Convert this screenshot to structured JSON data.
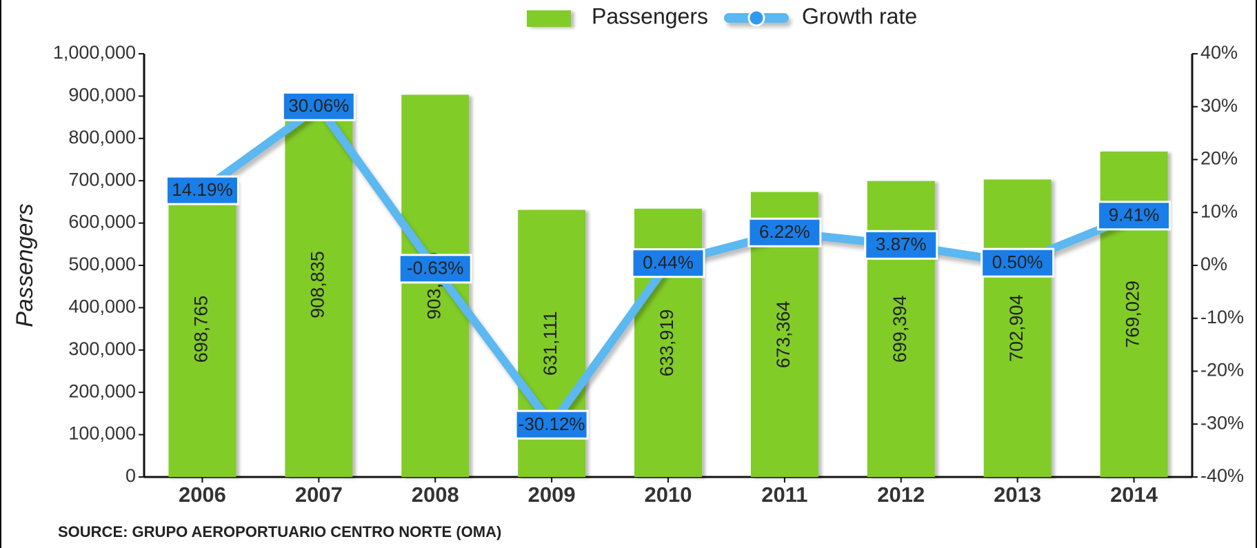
{
  "chart_data": {
    "type": "bar",
    "y_label": "Passengers",
    "source": "SOURCE: GRUPO AEROPORTUARIO CENTRO NORTE (OMA)",
    "categories": [
      "2006",
      "2007",
      "2008",
      "2009",
      "2010",
      "2011",
      "2012",
      "2013",
      "2014"
    ],
    "series": [
      {
        "name": "Passengers",
        "type": "bar",
        "axis": "y",
        "color": "#82cc28",
        "values": [
          698765,
          908835,
          903129,
          631111,
          633919,
          673364,
          699394,
          702904,
          769029
        ],
        "value_labels": [
          "698,765",
          "908,835",
          "903,129",
          "631,111",
          "633,919",
          "673,364",
          "699,394",
          "702,904",
          "769,029"
        ]
      },
      {
        "name": "Growth rate",
        "type": "line",
        "axis": "y2",
        "color": "#5bb8f0",
        "values": [
          14.19,
          30.06,
          -0.63,
          -30.12,
          0.44,
          6.22,
          3.87,
          0.5,
          9.41
        ],
        "value_labels": [
          "14.19%",
          "30.06%",
          "-0.63%",
          "-30.12%",
          "0.44%",
          "6.22%",
          "3.87%",
          "0.50%",
          "9.41%"
        ]
      }
    ],
    "ylim": [
      0,
      1000000
    ],
    "yticks": [
      0,
      {
        "value": 100000,
        "label": "100,000"
      },
      {
        "value": 200000,
        "label": "200,000"
      },
      {
        "value": 300000,
        "label": "300,000"
      },
      {
        "value": 400000,
        "label": "400,000"
      },
      {
        "value": 500000,
        "label": "500,000"
      },
      {
        "value": 600000,
        "label": "600,000"
      },
      {
        "value": 700000,
        "label": "700,000"
      },
      {
        "value": 800000,
        "label": "800,000"
      },
      {
        "value": 900000,
        "label": "900,000"
      },
      {
        "value": 1000000,
        "label": "1,000,000"
      }
    ],
    "y2lim": [
      -40,
      40
    ],
    "y2ticks": [
      {
        "value": -40,
        "label": "-40%"
      },
      {
        "value": -30,
        "label": "-30%"
      },
      {
        "value": -20,
        "label": "-20%"
      },
      {
        "value": -10,
        "label": "-10%"
      },
      {
        "value": 0,
        "label": "0%"
      },
      {
        "value": 10,
        "label": "10%"
      },
      {
        "value": 20,
        "label": "20%"
      },
      {
        "value": 30,
        "label": "30%"
      },
      {
        "value": 40,
        "label": "40%"
      }
    ],
    "legend": "top"
  }
}
